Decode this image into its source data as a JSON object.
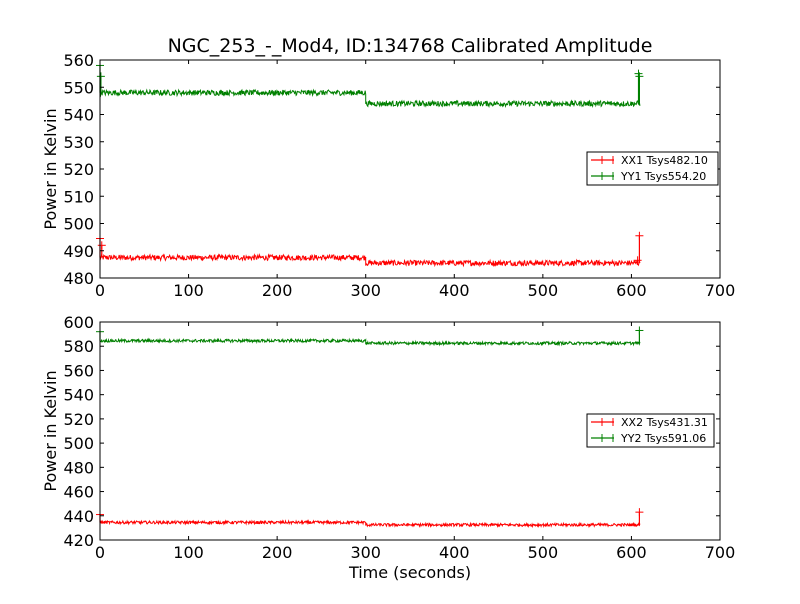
{
  "chart_data": [
    {
      "type": "line",
      "title": "NGC_253_-_Mod4, ID:134768 Calibrated Amplitude",
      "xlabel": "",
      "ylabel": "Power in Kelvin",
      "xlim": [
        0,
        700
      ],
      "ylim": [
        480,
        560
      ],
      "xticks": [
        "0",
        "100",
        "200",
        "300",
        "400",
        "500",
        "600",
        "700"
      ],
      "yticks": [
        "480",
        "490",
        "500",
        "510",
        "520",
        "530",
        "540",
        "550",
        "560"
      ],
      "legend_position": "center-right",
      "series": [
        {
          "name": "XX1 Tsys482.10",
          "color": "#ff0000",
          "segments": [
            {
              "x_start": 0,
              "x_end": 300,
              "level": 487.5,
              "noise": 1.0
            },
            {
              "x_start": 300,
              "x_end": 610,
              "level": 485.5,
              "noise": 1.0
            }
          ],
          "spikes": [
            {
              "x": 0,
              "y": 494.5
            },
            {
              "x": 2,
              "y": 492.0
            },
            {
              "x": 609,
              "y": 495.5
            },
            {
              "x": 607,
              "y": 486.5
            }
          ]
        },
        {
          "name": "YY1 Tsys554.20",
          "color": "#008000",
          "segments": [
            {
              "x_start": 0,
              "x_end": 300,
              "level": 548.0,
              "noise": 1.0
            },
            {
              "x_start": 300,
              "x_end": 610,
              "level": 544.0,
              "noise": 1.0
            }
          ],
          "spikes": [
            {
              "x": 0,
              "y": 558.0
            },
            {
              "x": 1,
              "y": 554.0
            },
            {
              "x": 608,
              "y": 555.0
            },
            {
              "x": 609,
              "y": 554.0
            }
          ]
        }
      ]
    },
    {
      "type": "line",
      "title": "",
      "xlabel": "Time (seconds)",
      "ylabel": "Power in Kelvin",
      "xlim": [
        0,
        700
      ],
      "ylim": [
        420,
        600
      ],
      "xticks": [
        "0",
        "100",
        "200",
        "300",
        "400",
        "500",
        "600",
        "700"
      ],
      "yticks": [
        "420",
        "440",
        "460",
        "480",
        "500",
        "520",
        "540",
        "560",
        "580",
        "600"
      ],
      "legend_position": "center-right",
      "series": [
        {
          "name": "XX2 Tsys431.31",
          "color": "#ff0000",
          "segments": [
            {
              "x_start": 0,
              "x_end": 300,
              "level": 434.5,
              "noise": 1.2
            },
            {
              "x_start": 300,
              "x_end": 610,
              "level": 432.5,
              "noise": 1.2
            }
          ],
          "spikes": [
            {
              "x": 0,
              "y": 441.0
            },
            {
              "x": 609,
              "y": 443.0
            }
          ]
        },
        {
          "name": "YY2 Tsys591.06",
          "color": "#008000",
          "segments": [
            {
              "x_start": 0,
              "x_end": 300,
              "level": 584.5,
              "noise": 1.2
            },
            {
              "x_start": 300,
              "x_end": 610,
              "level": 582.5,
              "noise": 1.2
            }
          ],
          "spikes": [
            {
              "x": 0,
              "y": 592.0
            },
            {
              "x": 609,
              "y": 593.0
            }
          ]
        }
      ]
    }
  ]
}
